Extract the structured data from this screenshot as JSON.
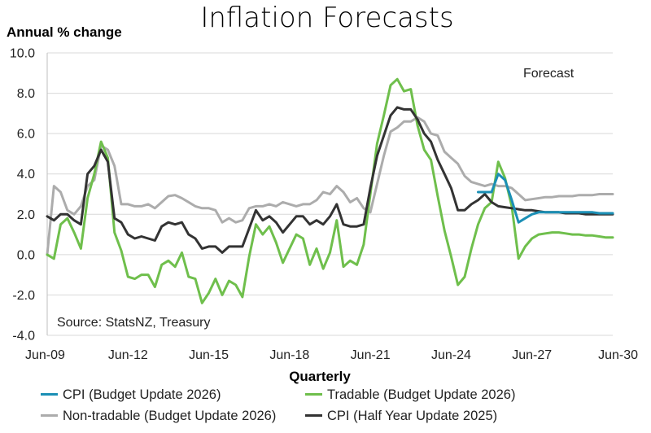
{
  "chart_data": {
    "type": "line",
    "title": "Inflation Forecasts",
    "ylabel": "Annual % change",
    "xlabel": "Quarterly",
    "annotations": {
      "forecast": "Forecast",
      "source": "Source: StatsNZ, Treasury"
    },
    "ylim": [
      -4.0,
      10.0
    ],
    "yticks": [
      "10.0",
      "8.0",
      "6.0",
      "4.0",
      "2.0",
      "0.0",
      "-2.0",
      "-4.0"
    ],
    "x_range": [
      "Jun-09",
      "Jun-30"
    ],
    "xticks": [
      "Jun-09",
      "Jun-12",
      "Jun-15",
      "Jun-18",
      "Jun-21",
      "Jun-24",
      "Jun-27",
      "Jun-30"
    ],
    "grid": "horizontal",
    "legend_position": "bottom",
    "series": [
      {
        "name": "CPI (Budget Update 2026)",
        "color": "#1b8fb5",
        "points": [
          [
            "Jun-25",
            3.1
          ],
          [
            "Sep-25",
            3.1
          ],
          [
            "Dec-25",
            3.1
          ],
          [
            "Mar-26",
            4.0
          ],
          [
            "Jun-26",
            3.7
          ],
          [
            "Sep-26",
            2.7
          ],
          [
            "Dec-26",
            1.6
          ],
          [
            "Mar-27",
            1.8
          ],
          [
            "Jun-27",
            2.0
          ],
          [
            "Sep-27",
            2.1
          ],
          [
            "Dec-27",
            2.1
          ],
          [
            "Mar-28",
            2.1
          ],
          [
            "Jun-28",
            2.1
          ],
          [
            "Sep-28",
            2.1
          ],
          [
            "Dec-28",
            2.1
          ],
          [
            "Mar-29",
            2.1
          ],
          [
            "Jun-29",
            2.1
          ],
          [
            "Sep-29",
            2.1
          ],
          [
            "Dec-29",
            2.05
          ],
          [
            "Mar-30",
            2.05
          ],
          [
            "Jun-30",
            2.05
          ]
        ]
      },
      {
        "name": "Tradable (Budget Update 2026)",
        "color": "#6fbf4c",
        "points": [
          [
            "Jun-09",
            0.0
          ],
          [
            "Sep-09",
            -0.2
          ],
          [
            "Dec-09",
            1.5
          ],
          [
            "Mar-10",
            1.8
          ],
          [
            "Jun-10",
            1.1
          ],
          [
            "Sep-10",
            0.3
          ],
          [
            "Dec-10",
            2.8
          ],
          [
            "Mar-11",
            4.0
          ],
          [
            "Jun-11",
            5.6
          ],
          [
            "Sep-11",
            4.8
          ],
          [
            "Dec-11",
            1.1
          ],
          [
            "Mar-12",
            0.2
          ],
          [
            "Jun-12",
            -1.1
          ],
          [
            "Sep-12",
            -1.2
          ],
          [
            "Dec-12",
            -1.0
          ],
          [
            "Mar-13",
            -1.0
          ],
          [
            "Jun-13",
            -1.6
          ],
          [
            "Sep-13",
            -0.5
          ],
          [
            "Dec-13",
            -0.3
          ],
          [
            "Mar-14",
            -0.6
          ],
          [
            "Jun-14",
            0.1
          ],
          [
            "Sep-14",
            -1.1
          ],
          [
            "Dec-14",
            -1.2
          ],
          [
            "Mar-15",
            -2.4
          ],
          [
            "Jun-15",
            -1.9
          ],
          [
            "Sep-15",
            -1.2
          ],
          [
            "Dec-15",
            -2.0
          ],
          [
            "Mar-16",
            -1.3
          ],
          [
            "Jun-16",
            -1.5
          ],
          [
            "Sep-16",
            -2.1
          ],
          [
            "Dec-16",
            -0.1
          ],
          [
            "Mar-17",
            1.5
          ],
          [
            "Jun-17",
            1.0
          ],
          [
            "Sep-17",
            1.4
          ],
          [
            "Dec-17",
            0.6
          ],
          [
            "Mar-18",
            -0.4
          ],
          [
            "Jun-18",
            0.3
          ],
          [
            "Sep-18",
            1.0
          ],
          [
            "Dec-18",
            0.8
          ],
          [
            "Mar-19",
            -0.5
          ],
          [
            "Jun-19",
            0.3
          ],
          [
            "Sep-19",
            -0.7
          ],
          [
            "Dec-19",
            0.1
          ],
          [
            "Mar-20",
            1.7
          ],
          [
            "Jun-20",
            -0.6
          ],
          [
            "Sep-20",
            -0.3
          ],
          [
            "Dec-20",
            -0.5
          ],
          [
            "Mar-21",
            0.5
          ],
          [
            "Jun-21",
            3.0
          ],
          [
            "Sep-21",
            5.5
          ],
          [
            "Dec-21",
            6.9
          ],
          [
            "Mar-22",
            8.4
          ],
          [
            "Jun-22",
            8.7
          ],
          [
            "Sep-22",
            8.1
          ],
          [
            "Dec-22",
            8.2
          ],
          [
            "Mar-23",
            6.4
          ],
          [
            "Jun-23",
            5.2
          ],
          [
            "Sep-23",
            4.7
          ],
          [
            "Dec-23",
            2.9
          ],
          [
            "Mar-24",
            1.2
          ],
          [
            "Jun-24",
            -0.1
          ],
          [
            "Sep-24",
            -1.5
          ],
          [
            "Dec-24",
            -1.1
          ],
          [
            "Mar-25",
            0.3
          ],
          [
            "Jun-25",
            1.5
          ],
          [
            "Sep-25",
            2.3
          ],
          [
            "Dec-25",
            2.6
          ],
          [
            "Mar-26",
            4.6
          ],
          [
            "Jun-26",
            3.8
          ],
          [
            "Sep-26",
            2.4
          ],
          [
            "Dec-26",
            -0.2
          ],
          [
            "Mar-27",
            0.4
          ],
          [
            "Jun-27",
            0.8
          ],
          [
            "Sep-27",
            1.0
          ],
          [
            "Dec-27",
            1.05
          ],
          [
            "Mar-28",
            1.1
          ],
          [
            "Jun-28",
            1.1
          ],
          [
            "Sep-28",
            1.05
          ],
          [
            "Dec-28",
            1.0
          ],
          [
            "Mar-29",
            1.0
          ],
          [
            "Jun-29",
            0.95
          ],
          [
            "Sep-29",
            0.95
          ],
          [
            "Dec-29",
            0.9
          ],
          [
            "Mar-30",
            0.85
          ],
          [
            "Jun-30",
            0.85
          ]
        ]
      },
      {
        "name": "Non-tradable (Budget Update 2026)",
        "color": "#acacac",
        "points": [
          [
            "Jun-09",
            0.0
          ],
          [
            "Sep-09",
            3.4
          ],
          [
            "Dec-09",
            3.1
          ],
          [
            "Mar-10",
            2.2
          ],
          [
            "Jun-10",
            2.0
          ],
          [
            "Sep-10",
            2.4
          ],
          [
            "Dec-10",
            3.4
          ],
          [
            "Mar-11",
            3.7
          ],
          [
            "Jun-11",
            5.4
          ],
          [
            "Sep-11",
            5.2
          ],
          [
            "Dec-11",
            4.4
          ],
          [
            "Mar-12",
            2.5
          ],
          [
            "Jun-12",
            2.5
          ],
          [
            "Sep-12",
            2.4
          ],
          [
            "Dec-12",
            2.4
          ],
          [
            "Mar-13",
            2.5
          ],
          [
            "Jun-13",
            2.3
          ],
          [
            "Sep-13",
            2.6
          ],
          [
            "Dec-13",
            2.9
          ],
          [
            "Mar-14",
            2.95
          ],
          [
            "Jun-14",
            2.8
          ],
          [
            "Sep-14",
            2.6
          ],
          [
            "Dec-14",
            2.4
          ],
          [
            "Mar-15",
            2.3
          ],
          [
            "Jun-15",
            2.3
          ],
          [
            "Sep-15",
            2.2
          ],
          [
            "Dec-15",
            1.6
          ],
          [
            "Mar-16",
            1.8
          ],
          [
            "Jun-16",
            1.6
          ],
          [
            "Sep-16",
            1.7
          ],
          [
            "Dec-16",
            2.3
          ],
          [
            "Mar-17",
            2.4
          ],
          [
            "Jun-17",
            2.4
          ],
          [
            "Sep-17",
            2.5
          ],
          [
            "Dec-17",
            2.4
          ],
          [
            "Mar-18",
            2.6
          ],
          [
            "Jun-18",
            2.5
          ],
          [
            "Sep-18",
            2.4
          ],
          [
            "Dec-18",
            2.5
          ],
          [
            "Mar-19",
            2.5
          ],
          [
            "Jun-19",
            2.7
          ],
          [
            "Sep-19",
            3.1
          ],
          [
            "Dec-19",
            3.0
          ],
          [
            "Mar-20",
            3.4
          ],
          [
            "Jun-20",
            3.1
          ],
          [
            "Sep-20",
            2.6
          ],
          [
            "Dec-20",
            2.8
          ],
          [
            "Mar-21",
            2.3
          ],
          [
            "Jun-21",
            2.1
          ],
          [
            "Sep-21",
            3.5
          ],
          [
            "Dec-21",
            4.9
          ],
          [
            "Mar-22",
            6.1
          ],
          [
            "Jun-22",
            6.3
          ],
          [
            "Sep-22",
            6.6
          ],
          [
            "Dec-22",
            6.6
          ],
          [
            "Mar-23",
            6.8
          ],
          [
            "Jun-23",
            6.6
          ],
          [
            "Sep-23",
            6.0
          ],
          [
            "Dec-23",
            5.9
          ],
          [
            "Mar-24",
            5.1
          ],
          [
            "Jun-24",
            4.8
          ],
          [
            "Sep-24",
            4.5
          ],
          [
            "Dec-24",
            3.9
          ],
          [
            "Mar-25",
            3.6
          ],
          [
            "Jun-25",
            3.5
          ],
          [
            "Sep-25",
            3.4
          ],
          [
            "Dec-25",
            3.5
          ],
          [
            "Mar-26",
            3.4
          ],
          [
            "Jun-26",
            3.4
          ],
          [
            "Sep-26",
            3.3
          ],
          [
            "Dec-26",
            3.0
          ],
          [
            "Mar-27",
            2.7
          ],
          [
            "Jun-27",
            2.75
          ],
          [
            "Sep-27",
            2.8
          ],
          [
            "Dec-27",
            2.85
          ],
          [
            "Mar-28",
            2.85
          ],
          [
            "Jun-28",
            2.9
          ],
          [
            "Sep-28",
            2.9
          ],
          [
            "Dec-28",
            2.9
          ],
          [
            "Mar-29",
            2.95
          ],
          [
            "Jun-29",
            2.95
          ],
          [
            "Sep-29",
            2.95
          ],
          [
            "Dec-29",
            3.0
          ],
          [
            "Mar-30",
            3.0
          ],
          [
            "Jun-30",
            3.0
          ]
        ]
      },
      {
        "name": "CPI (Half Year Update 2025)",
        "color": "#333333",
        "points": [
          [
            "Jun-09",
            1.9
          ],
          [
            "Sep-09",
            1.7
          ],
          [
            "Dec-09",
            2.0
          ],
          [
            "Mar-10",
            2.0
          ],
          [
            "Jun-10",
            1.7
          ],
          [
            "Sep-10",
            1.5
          ],
          [
            "Dec-10",
            4.0
          ],
          [
            "Mar-11",
            4.4
          ],
          [
            "Jun-11",
            5.2
          ],
          [
            "Sep-11",
            4.6
          ],
          [
            "Dec-11",
            1.8
          ],
          [
            "Mar-12",
            1.6
          ],
          [
            "Jun-12",
            1.0
          ],
          [
            "Sep-12",
            0.8
          ],
          [
            "Dec-12",
            0.9
          ],
          [
            "Mar-13",
            0.8
          ],
          [
            "Jun-13",
            0.7
          ],
          [
            "Sep-13",
            1.4
          ],
          [
            "Dec-13",
            1.6
          ],
          [
            "Mar-14",
            1.5
          ],
          [
            "Jun-14",
            1.6
          ],
          [
            "Sep-14",
            1.0
          ],
          [
            "Dec-14",
            0.8
          ],
          [
            "Mar-15",
            0.3
          ],
          [
            "Jun-15",
            0.4
          ],
          [
            "Sep-15",
            0.4
          ],
          [
            "Dec-15",
            0.1
          ],
          [
            "Mar-16",
            0.4
          ],
          [
            "Jun-16",
            0.4
          ],
          [
            "Sep-16",
            0.4
          ],
          [
            "Dec-16",
            1.3
          ],
          [
            "Mar-17",
            2.2
          ],
          [
            "Jun-17",
            1.7
          ],
          [
            "Sep-17",
            1.9
          ],
          [
            "Dec-17",
            1.6
          ],
          [
            "Mar-18",
            1.1
          ],
          [
            "Jun-18",
            1.5
          ],
          [
            "Sep-18",
            1.9
          ],
          [
            "Dec-18",
            1.9
          ],
          [
            "Mar-19",
            1.5
          ],
          [
            "Jun-19",
            1.7
          ],
          [
            "Sep-19",
            1.5
          ],
          [
            "Dec-19",
            1.9
          ],
          [
            "Mar-20",
            2.5
          ],
          [
            "Jun-20",
            1.5
          ],
          [
            "Sep-20",
            1.4
          ],
          [
            "Dec-20",
            1.4
          ],
          [
            "Mar-21",
            1.5
          ],
          [
            "Jun-21",
            3.3
          ],
          [
            "Sep-21",
            4.9
          ],
          [
            "Dec-21",
            5.9
          ],
          [
            "Mar-22",
            6.9
          ],
          [
            "Jun-22",
            7.3
          ],
          [
            "Sep-22",
            7.2
          ],
          [
            "Dec-22",
            7.2
          ],
          [
            "Mar-23",
            6.7
          ],
          [
            "Jun-23",
            6.0
          ],
          [
            "Sep-23",
            5.6
          ],
          [
            "Dec-23",
            4.7
          ],
          [
            "Mar-24",
            4.0
          ],
          [
            "Jun-24",
            3.3
          ],
          [
            "Sep-24",
            2.2
          ],
          [
            "Dec-24",
            2.2
          ],
          [
            "Mar-25",
            2.5
          ],
          [
            "Jun-25",
            2.7
          ],
          [
            "Sep-25",
            3.0
          ],
          [
            "Dec-25",
            2.6
          ],
          [
            "Mar-26",
            2.4
          ],
          [
            "Jun-26",
            2.35
          ],
          [
            "Sep-26",
            2.3
          ],
          [
            "Dec-26",
            2.25
          ],
          [
            "Mar-27",
            2.2
          ],
          [
            "Jun-27",
            2.2
          ],
          [
            "Sep-27",
            2.15
          ],
          [
            "Dec-27",
            2.1
          ],
          [
            "Mar-28",
            2.1
          ],
          [
            "Jun-28",
            2.1
          ],
          [
            "Sep-28",
            2.05
          ],
          [
            "Dec-28",
            2.05
          ],
          [
            "Mar-29",
            2.05
          ],
          [
            "Jun-29",
            2.0
          ],
          [
            "Sep-29",
            2.0
          ],
          [
            "Dec-29",
            2.0
          ],
          [
            "Mar-30",
            2.0
          ],
          [
            "Jun-30",
            2.0
          ]
        ]
      }
    ]
  }
}
